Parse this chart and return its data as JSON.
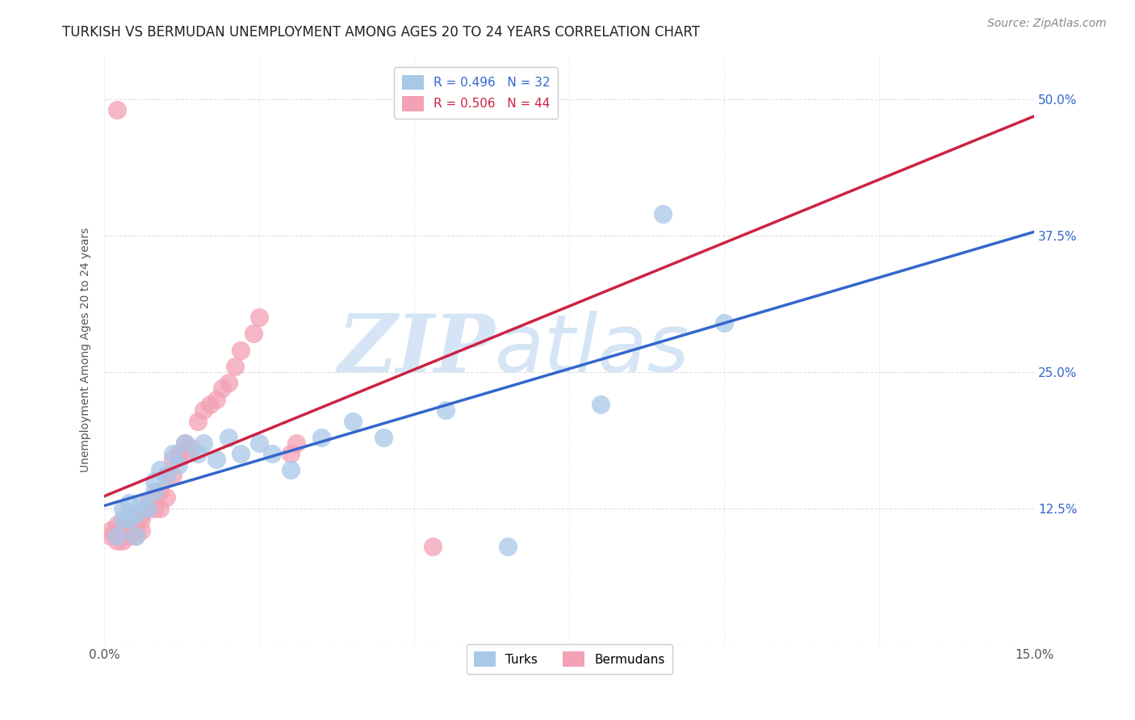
{
  "title": "TURKISH VS BERMUDAN UNEMPLOYMENT AMONG AGES 20 TO 24 YEARS CORRELATION CHART",
  "source": "Source: ZipAtlas.com",
  "ylabel": "Unemployment Among Ages 20 to 24 years",
  "xlim": [
    0.0,
    0.15
  ],
  "ylim": [
    0.0,
    0.54
  ],
  "xticks": [
    0.0,
    0.025,
    0.05,
    0.075,
    0.1,
    0.125,
    0.15
  ],
  "xticklabels": [
    "0.0%",
    "",
    "",
    "",
    "",
    "",
    "15.0%"
  ],
  "ytick_positions": [
    0.0,
    0.125,
    0.25,
    0.375,
    0.5
  ],
  "right_yticklabels": [
    "",
    "12.5%",
    "25.0%",
    "37.5%",
    "50.0%"
  ],
  "turks_R": 0.496,
  "turks_N": 32,
  "bermudans_R": 0.506,
  "bermudans_N": 44,
  "turks_color": "#a8c8e8",
  "bermudans_color": "#f4a0b5",
  "turks_line_color": "#3366cc",
  "bermudans_line_color": "#cc2244",
  "watermark_color": "#d5e5f5",
  "turks_x": [
    0.002,
    0.003,
    0.003,
    0.004,
    0.004,
    0.005,
    0.005,
    0.006,
    0.007,
    0.008,
    0.008,
    0.009,
    0.01,
    0.011,
    0.012,
    0.013,
    0.015,
    0.016,
    0.018,
    0.02,
    0.022,
    0.025,
    0.027,
    0.03,
    0.035,
    0.04,
    0.045,
    0.055,
    0.065,
    0.08,
    0.09,
    0.1
  ],
  "turks_y": [
    0.1,
    0.115,
    0.125,
    0.115,
    0.13,
    0.1,
    0.12,
    0.13,
    0.125,
    0.14,
    0.15,
    0.16,
    0.155,
    0.175,
    0.165,
    0.185,
    0.175,
    0.185,
    0.17,
    0.19,
    0.175,
    0.185,
    0.175,
    0.16,
    0.19,
    0.205,
    0.19,
    0.215,
    0.09,
    0.22,
    0.395,
    0.295
  ],
  "bermudans_x": [
    0.001,
    0.001,
    0.002,
    0.002,
    0.003,
    0.003,
    0.003,
    0.004,
    0.004,
    0.005,
    0.005,
    0.005,
    0.005,
    0.006,
    0.006,
    0.006,
    0.007,
    0.007,
    0.008,
    0.008,
    0.009,
    0.009,
    0.01,
    0.01,
    0.011,
    0.011,
    0.012,
    0.013,
    0.013,
    0.014,
    0.015,
    0.016,
    0.017,
    0.018,
    0.019,
    0.02,
    0.021,
    0.022,
    0.024,
    0.025,
    0.03,
    0.031,
    0.053,
    0.002
  ],
  "bermudans_y": [
    0.1,
    0.105,
    0.095,
    0.11,
    0.095,
    0.1,
    0.11,
    0.1,
    0.105,
    0.1,
    0.105,
    0.11,
    0.115,
    0.105,
    0.115,
    0.12,
    0.125,
    0.13,
    0.125,
    0.135,
    0.125,
    0.14,
    0.135,
    0.155,
    0.155,
    0.17,
    0.175,
    0.175,
    0.185,
    0.18,
    0.205,
    0.215,
    0.22,
    0.225,
    0.235,
    0.24,
    0.255,
    0.27,
    0.285,
    0.3,
    0.175,
    0.185,
    0.09,
    0.49
  ],
  "background_color": "#ffffff",
  "grid_color": "#dddddd",
  "title_fontsize": 12,
  "axis_label_fontsize": 10,
  "tick_fontsize": 11,
  "legend_fontsize": 11,
  "source_fontsize": 10
}
